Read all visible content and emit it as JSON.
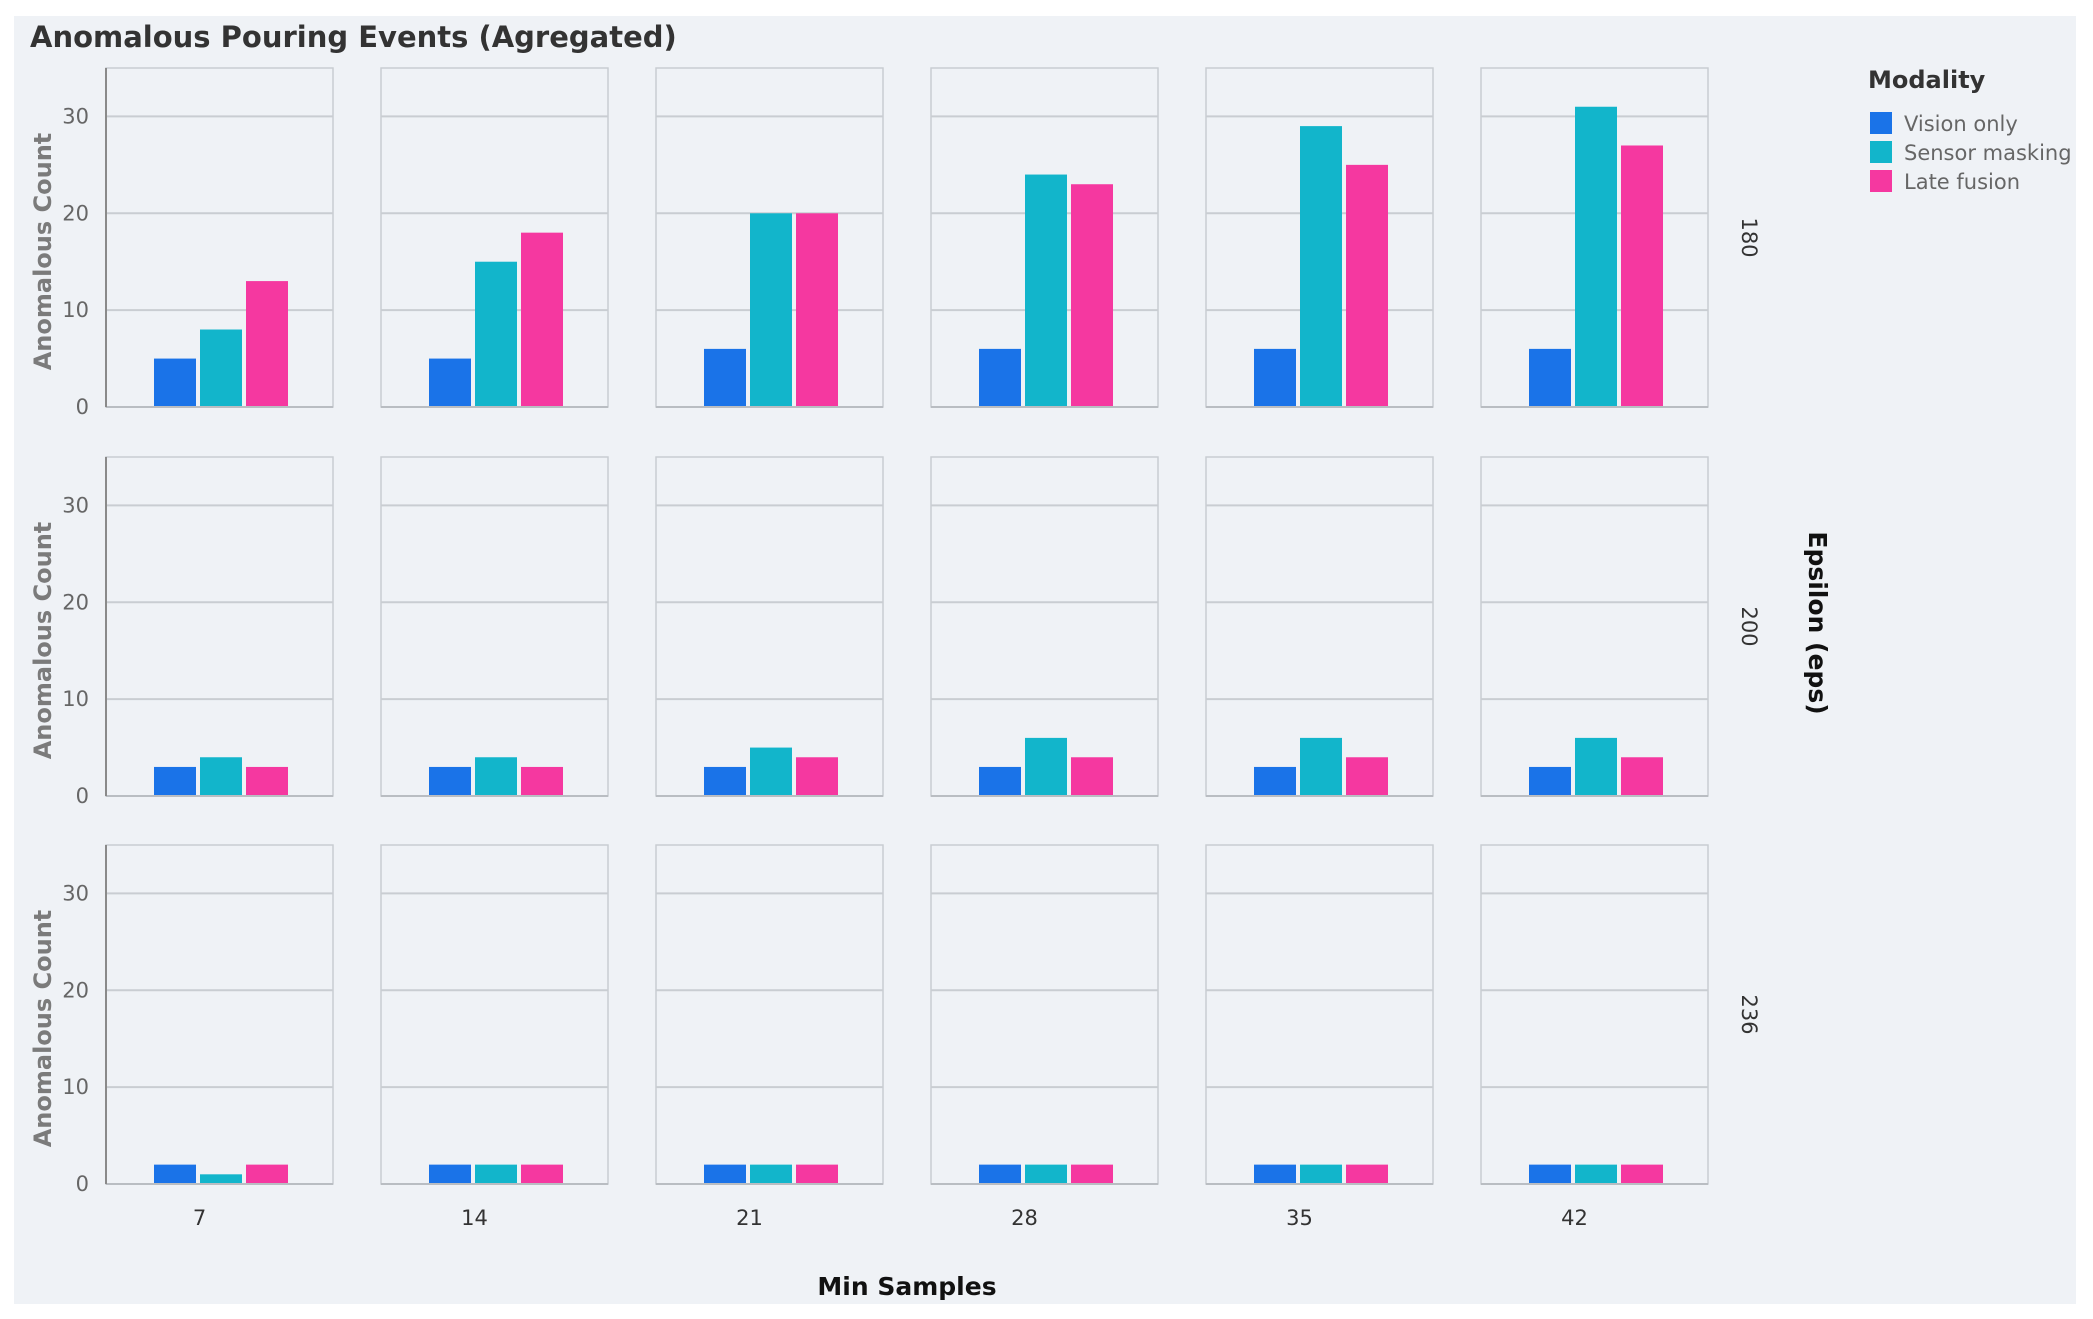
{
  "chart_data": {
    "type": "bar",
    "title": "Anomalous Pouring Events (Agregated)",
    "xlabel": "Min Samples",
    "ylabel": "Anomalous Count",
    "row_facet_label": "Epsilon (eps)",
    "ylim": [
      0,
      35
    ],
    "yticks": [
      0,
      10,
      20,
      30
    ],
    "grid": true,
    "legend": {
      "title": "Modality",
      "position": "top-right"
    },
    "series_names": [
      "Vision only",
      "Sensor masking",
      "Late fusion"
    ],
    "colors": {
      "Vision only": "#1a73e8",
      "Sensor masking": "#12b5cb",
      "Late fusion": "#f538a0"
    },
    "columns": [
      "7",
      "14",
      "21",
      "28",
      "35",
      "42"
    ],
    "rows": [
      {
        "eps": "180",
        "series": [
          {
            "name": "Vision only",
            "values": [
              5,
              5,
              6,
              6,
              6,
              6
            ]
          },
          {
            "name": "Sensor masking",
            "values": [
              8,
              15,
              20,
              24,
              29,
              31
            ]
          },
          {
            "name": "Late fusion",
            "values": [
              13,
              18,
              20,
              23,
              25,
              27
            ]
          }
        ]
      },
      {
        "eps": "200",
        "series": [
          {
            "name": "Vision only",
            "values": [
              3,
              3,
              3,
              3,
              3,
              3
            ]
          },
          {
            "name": "Sensor masking",
            "values": [
              4,
              4,
              5,
              6,
              6,
              6
            ]
          },
          {
            "name": "Late fusion",
            "values": [
              3,
              3,
              4,
              4,
              4,
              4
            ]
          }
        ]
      },
      {
        "eps": "236",
        "series": [
          {
            "name": "Vision only",
            "values": [
              2,
              2,
              2,
              2,
              2,
              2
            ]
          },
          {
            "name": "Sensor masking",
            "values": [
              1,
              2,
              2,
              2,
              2,
              2
            ]
          },
          {
            "name": "Late fusion",
            "values": [
              2,
              2,
              2,
              2,
              2,
              2
            ]
          }
        ]
      }
    ]
  }
}
